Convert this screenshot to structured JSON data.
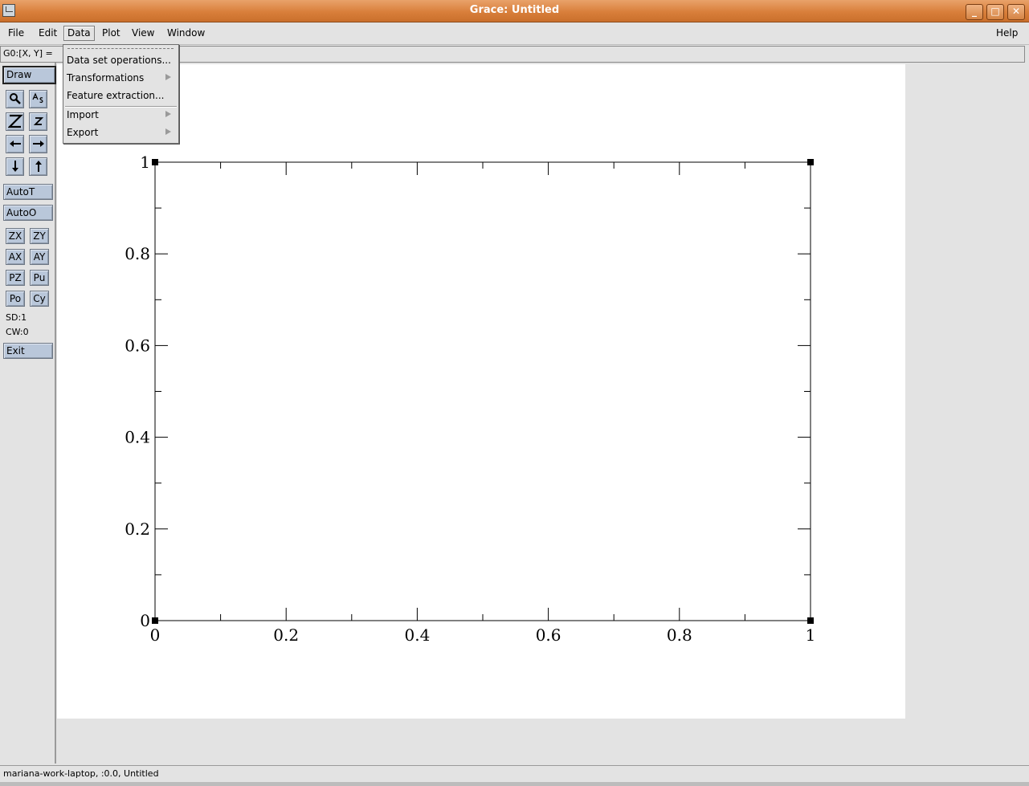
{
  "window": {
    "title": "Grace: Untitled",
    "minimize_glyph": "_",
    "maximize_glyph": "□",
    "close_glyph": "✕"
  },
  "menubar": {
    "file": "File",
    "edit": "Edit",
    "data": "Data",
    "plot": "Plot",
    "view": "View",
    "window": "Window",
    "help": "Help"
  },
  "locator": {
    "label": "G0:[X, Y] ="
  },
  "data_menu": {
    "items": [
      "Data set operations...",
      "Transformations",
      "Feature extraction...",
      "Import",
      "Export"
    ]
  },
  "toolbar": {
    "draw": "Draw",
    "autot": "AutoT",
    "autoo": "AutoO",
    "zx": "ZX",
    "zy": "ZY",
    "ax": "AX",
    "ay": "AY",
    "pz": "PZ",
    "pu": "Pu",
    "po": "Po",
    "cy": "Cy",
    "sd": "SD:1",
    "cw": "CW:0",
    "exit": "Exit",
    "icons": {
      "zoom": "magnifier-icon",
      "text": "text-icon",
      "zoom_in": "zoom-in-icon",
      "zoom_out": "zoom-out-icon",
      "left": "arrow-left-icon",
      "right": "arrow-right-icon",
      "down": "arrow-down-icon",
      "up": "arrow-up-icon"
    }
  },
  "status": {
    "text": "mariana-work-laptop, :0.0, Untitled"
  },
  "chart_data": {
    "type": "scatter",
    "series": [],
    "xlim": [
      0,
      1
    ],
    "ylim": [
      0,
      1
    ],
    "x_ticks": [
      "0",
      "0.2",
      "0.4",
      "0.6",
      "0.8",
      "1"
    ],
    "y_ticks": [
      "0",
      "0.2",
      "0.4",
      "0.6",
      "0.8",
      "1"
    ],
    "grid": false
  },
  "colors": {
    "titlebar": "#d97f3b",
    "toolbutton": "#b9c7da",
    "background": "#e3e3e3",
    "canvas": "#ffffff"
  }
}
